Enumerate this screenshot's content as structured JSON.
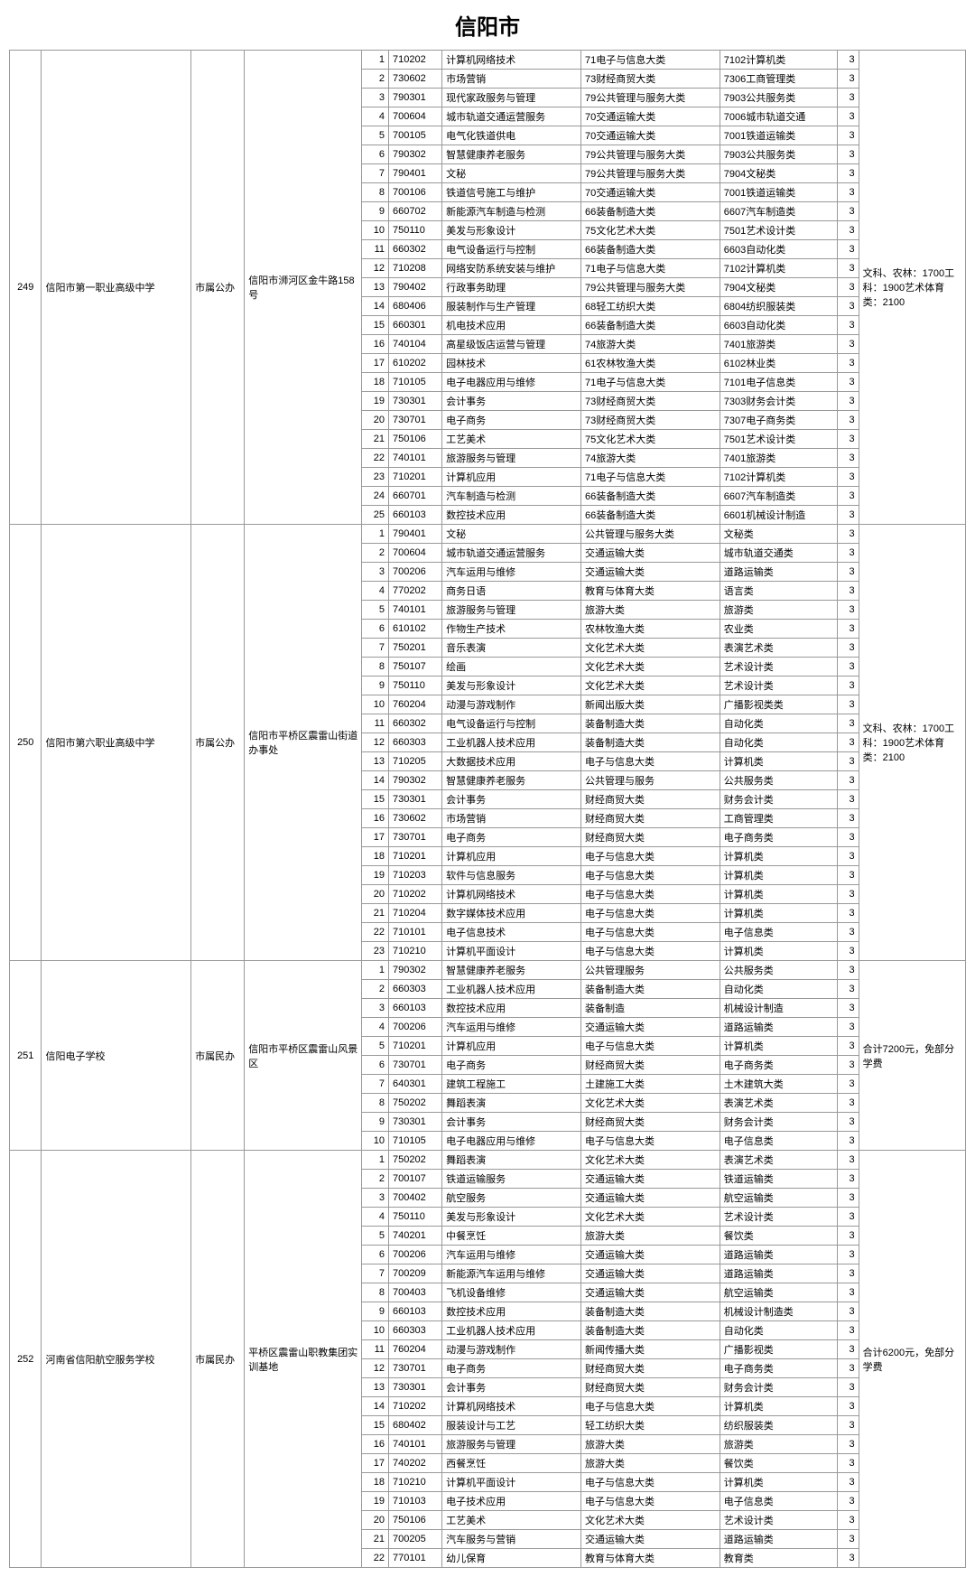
{
  "pageTitle": "信阳市",
  "schools": [
    {
      "id": "249",
      "name": "信阳市第一职业高级中学",
      "type": "市属公办",
      "address": "信阳市浉河区金牛路158号",
      "note": "文科、农林：1700工科：1900艺术体育类：2100",
      "majors": [
        {
          "seq": "1",
          "code": "710202",
          "name": "计算机网络技术",
          "cat1": "71电子与信息大类",
          "cat2": "7102计算机类",
          "years": "3"
        },
        {
          "seq": "2",
          "code": "730602",
          "name": "市场营销",
          "cat1": "73财经商贸大类",
          "cat2": "7306工商管理类",
          "years": "3"
        },
        {
          "seq": "3",
          "code": "790301",
          "name": "现代家政服务与管理",
          "cat1": "79公共管理与服务大类",
          "cat2": "7903公共服务类",
          "years": "3"
        },
        {
          "seq": "4",
          "code": "700604",
          "name": "城市轨道交通运营服务",
          "cat1": "70交通运输大类",
          "cat2": "7006城市轨道交通",
          "years": "3"
        },
        {
          "seq": "5",
          "code": "700105",
          "name": "电气化铁道供电",
          "cat1": "70交通运输大类",
          "cat2": "7001铁道运输类",
          "years": "3"
        },
        {
          "seq": "6",
          "code": "790302",
          "name": "智慧健康养老服务",
          "cat1": "79公共管理与服务大类",
          "cat2": "7903公共服务类",
          "years": "3"
        },
        {
          "seq": "7",
          "code": "790401",
          "name": "文秘",
          "cat1": "79公共管理与服务大类",
          "cat2": "7904文秘类",
          "years": "3"
        },
        {
          "seq": "8",
          "code": "700106",
          "name": "铁道信号施工与维护",
          "cat1": "70交通运输大类",
          "cat2": "7001铁道运输类",
          "years": "3"
        },
        {
          "seq": "9",
          "code": "660702",
          "name": "新能源汽车制造与检测",
          "cat1": "66装备制造大类",
          "cat2": "6607汽车制造类",
          "years": "3"
        },
        {
          "seq": "10",
          "code": "750110",
          "name": "美发与形象设计",
          "cat1": "75文化艺术大类",
          "cat2": "7501艺术设计类",
          "years": "3"
        },
        {
          "seq": "11",
          "code": "660302",
          "name": "电气设备运行与控制",
          "cat1": "66装备制造大类",
          "cat2": "6603自动化类",
          "years": "3"
        },
        {
          "seq": "12",
          "code": "710208",
          "name": "网络安防系统安装与维护",
          "cat1": "71电子与信息大类",
          "cat2": "7102计算机类",
          "years": "3"
        },
        {
          "seq": "13",
          "code": "790402",
          "name": "行政事务助理",
          "cat1": "79公共管理与服务大类",
          "cat2": "7904文秘类",
          "years": "3"
        },
        {
          "seq": "14",
          "code": "680406",
          "name": "服装制作与生产管理",
          "cat1": "68轻工纺织大类",
          "cat2": "6804纺织服装类",
          "years": "3"
        },
        {
          "seq": "15",
          "code": "660301",
          "name": "机电技术应用",
          "cat1": "66装备制造大类",
          "cat2": "6603自动化类",
          "years": "3"
        },
        {
          "seq": "16",
          "code": "740104",
          "name": "高星级饭店运营与管理",
          "cat1": "74旅游大类",
          "cat2": "7401旅游类",
          "years": "3"
        },
        {
          "seq": "17",
          "code": "610202",
          "name": "园林技术",
          "cat1": "61农林牧渔大类",
          "cat2": "6102林业类",
          "years": "3"
        },
        {
          "seq": "18",
          "code": "710105",
          "name": "电子电器应用与维修",
          "cat1": "71电子与信息大类",
          "cat2": "7101电子信息类",
          "years": "3"
        },
        {
          "seq": "19",
          "code": "730301",
          "name": "会计事务",
          "cat1": "73财经商贸大类",
          "cat2": "7303财务会计类",
          "years": "3"
        },
        {
          "seq": "20",
          "code": "730701",
          "name": "电子商务",
          "cat1": "73财经商贸大类",
          "cat2": "7307电子商务类",
          "years": "3"
        },
        {
          "seq": "21",
          "code": "750106",
          "name": "工艺美术",
          "cat1": "75文化艺术大类",
          "cat2": "7501艺术设计类",
          "years": "3"
        },
        {
          "seq": "22",
          "code": "740101",
          "name": "旅游服务与管理",
          "cat1": "74旅游大类",
          "cat2": "7401旅游类",
          "years": "3"
        },
        {
          "seq": "23",
          "code": "710201",
          "name": "计算机应用",
          "cat1": "71电子与信息大类",
          "cat2": "7102计算机类",
          "years": "3"
        },
        {
          "seq": "24",
          "code": "660701",
          "name": "汽车制造与检测",
          "cat1": "66装备制造大类",
          "cat2": "6607汽车制造类",
          "years": "3"
        },
        {
          "seq": "25",
          "code": "660103",
          "name": "数控技术应用",
          "cat1": "66装备制造大类",
          "cat2": "6601机械设计制造",
          "years": "3"
        }
      ]
    },
    {
      "id": "250",
      "name": "信阳市第六职业高级中学",
      "type": "市属公办",
      "address": "信阳市平桥区震雷山街道办事处",
      "note": "文科、农林：1700工科：1900艺术体育类：2100",
      "majors": [
        {
          "seq": "1",
          "code": "790401",
          "name": "文秘",
          "cat1": "公共管理与服务大类",
          "cat2": "文秘类",
          "years": "3"
        },
        {
          "seq": "2",
          "code": "700604",
          "name": "城市轨道交通运营服务",
          "cat1": "交通运输大类",
          "cat2": "城市轨道交通类",
          "years": "3"
        },
        {
          "seq": "3",
          "code": "700206",
          "name": "汽车运用与维修",
          "cat1": "交通运输大类",
          "cat2": "道路运输类",
          "years": "3"
        },
        {
          "seq": "4",
          "code": "770202",
          "name": "商务日语",
          "cat1": "教育与体育大类",
          "cat2": "语言类",
          "years": "3"
        },
        {
          "seq": "5",
          "code": "740101",
          "name": "旅游服务与管理",
          "cat1": "旅游大类",
          "cat2": "旅游类",
          "years": "3"
        },
        {
          "seq": "6",
          "code": "610102",
          "name": "作物生产技术",
          "cat1": "农林牧渔大类",
          "cat2": "农业类",
          "years": "3"
        },
        {
          "seq": "7",
          "code": "750201",
          "name": "音乐表演",
          "cat1": "文化艺术大类",
          "cat2": "表演艺术类",
          "years": "3"
        },
        {
          "seq": "8",
          "code": "750107",
          "name": "绘画",
          "cat1": "文化艺术大类",
          "cat2": "艺术设计类",
          "years": "3"
        },
        {
          "seq": "9",
          "code": "750110",
          "name": "美发与形象设计",
          "cat1": "文化艺术大类",
          "cat2": "艺术设计类",
          "years": "3"
        },
        {
          "seq": "10",
          "code": "760204",
          "name": "动漫与游戏制作",
          "cat1": "新闻出版大类",
          "cat2": "广播影视类类",
          "years": "3"
        },
        {
          "seq": "11",
          "code": "660302",
          "name": "电气设备运行与控制",
          "cat1": "装备制造大类",
          "cat2": "自动化类",
          "years": "3"
        },
        {
          "seq": "12",
          "code": "660303",
          "name": "工业机器人技术应用",
          "cat1": "装备制造大类",
          "cat2": "自动化类",
          "years": "3"
        },
        {
          "seq": "13",
          "code": "710205",
          "name": "大数据技术应用",
          "cat1": "电子与信息大类",
          "cat2": "计算机类",
          "years": "3"
        },
        {
          "seq": "14",
          "code": "790302",
          "name": "智慧健康养老服务",
          "cat1": "公共管理与服务",
          "cat2": "公共服务类",
          "years": "3"
        },
        {
          "seq": "15",
          "code": "730301",
          "name": "会计事务",
          "cat1": "财经商贸大类",
          "cat2": "财务会计类",
          "years": "3"
        },
        {
          "seq": "16",
          "code": "730602",
          "name": "市场营销",
          "cat1": "财经商贸大类",
          "cat2": "工商管理类",
          "years": "3"
        },
        {
          "seq": "17",
          "code": "730701",
          "name": "电子商务",
          "cat1": "财经商贸大类",
          "cat2": "电子商务类",
          "years": "3"
        },
        {
          "seq": "18",
          "code": "710201",
          "name": "计算机应用",
          "cat1": "电子与信息大类",
          "cat2": "计算机类",
          "years": "3"
        },
        {
          "seq": "19",
          "code": "710203",
          "name": "软件与信息服务",
          "cat1": "电子与信息大类",
          "cat2": "计算机类",
          "years": "3"
        },
        {
          "seq": "20",
          "code": "710202",
          "name": "计算机网络技术",
          "cat1": "电子与信息大类",
          "cat2": "计算机类",
          "years": "3"
        },
        {
          "seq": "21",
          "code": "710204",
          "name": "数字媒体技术应用",
          "cat1": "电子与信息大类",
          "cat2": "计算机类",
          "years": "3"
        },
        {
          "seq": "22",
          "code": "710101",
          "name": "电子信息技术",
          "cat1": "电子与信息大类",
          "cat2": "电子信息类",
          "years": "3"
        },
        {
          "seq": "23",
          "code": "710210",
          "name": "计算机平面设计",
          "cat1": "电子与信息大类",
          "cat2": "计算机类",
          "years": "3"
        }
      ]
    },
    {
      "id": "251",
      "name": "信阳电子学校",
      "type": "市属民办",
      "address": "信阳市平桥区震雷山风景区",
      "note": "合计7200元，免部分学费",
      "majors": [
        {
          "seq": "1",
          "code": "790302",
          "name": "智慧健康养老服务",
          "cat1": "公共管理服务",
          "cat2": "公共服务类",
          "years": "3"
        },
        {
          "seq": "2",
          "code": "660303",
          "name": "工业机器人技术应用",
          "cat1": "装备制造大类",
          "cat2": "自动化类",
          "years": "3"
        },
        {
          "seq": "3",
          "code": "660103",
          "name": "数控技术应用",
          "cat1": "装备制造",
          "cat2": "机械设计制造",
          "years": "3"
        },
        {
          "seq": "4",
          "code": "700206",
          "name": "汽车运用与维修",
          "cat1": "交通运输大类",
          "cat2": "道路运输类",
          "years": "3"
        },
        {
          "seq": "5",
          "code": "710201",
          "name": "计算机应用",
          "cat1": "电子与信息大类",
          "cat2": "计算机类",
          "years": "3"
        },
        {
          "seq": "6",
          "code": "730701",
          "name": "电子商务",
          "cat1": "财经商贸大类",
          "cat2": "电子商务类",
          "years": "3"
        },
        {
          "seq": "7",
          "code": "640301",
          "name": "建筑工程施工",
          "cat1": "土建施工大类",
          "cat2": "土木建筑大类",
          "years": "3"
        },
        {
          "seq": "8",
          "code": "750202",
          "name": "舞蹈表演",
          "cat1": "文化艺术大类",
          "cat2": "表演艺术类",
          "years": "3"
        },
        {
          "seq": "9",
          "code": "730301",
          "name": "会计事务",
          "cat1": "财经商贸大类",
          "cat2": "财务会计类",
          "years": "3"
        },
        {
          "seq": "10",
          "code": "710105",
          "name": "电子电器应用与维修",
          "cat1": "电子与信息大类",
          "cat2": "电子信息类",
          "years": "3"
        }
      ]
    },
    {
      "id": "252",
      "name": "河南省信阳航空服务学校",
      "type": "市属民办",
      "address": "平桥区震雷山职教集团实训基地",
      "note": "合计6200元，免部分学费",
      "majors": [
        {
          "seq": "1",
          "code": "750202",
          "name": "舞蹈表演",
          "cat1": "文化艺术大类",
          "cat2": "表演艺术类",
          "years": "3"
        },
        {
          "seq": "2",
          "code": "700107",
          "name": "铁道运输服务",
          "cat1": "交通运输大类",
          "cat2": "铁道运输类",
          "years": "3"
        },
        {
          "seq": "3",
          "code": "700402",
          "name": "航空服务",
          "cat1": "交通运输大类",
          "cat2": "航空运输类",
          "years": "3"
        },
        {
          "seq": "4",
          "code": "750110",
          "name": "美发与形象设计",
          "cat1": "文化艺术大类",
          "cat2": "艺术设计类",
          "years": "3"
        },
        {
          "seq": "5",
          "code": "740201",
          "name": "中餐烹饪",
          "cat1": "旅游大类",
          "cat2": "餐饮类",
          "years": "3"
        },
        {
          "seq": "6",
          "code": "700206",
          "name": "汽车运用与维修",
          "cat1": "交通运输大类",
          "cat2": "道路运输类",
          "years": "3"
        },
        {
          "seq": "7",
          "code": "700209",
          "name": "新能源汽车运用与维修",
          "cat1": "交通运输大类",
          "cat2": "道路运输类",
          "years": "3"
        },
        {
          "seq": "8",
          "code": "700403",
          "name": "飞机设备维修",
          "cat1": "交通运输大类",
          "cat2": "航空运输类",
          "years": "3"
        },
        {
          "seq": "9",
          "code": "660103",
          "name": "数控技术应用",
          "cat1": "装备制造大类",
          "cat2": "机械设计制造类",
          "years": "3"
        },
        {
          "seq": "10",
          "code": "660303",
          "name": "工业机器人技术应用",
          "cat1": "装备制造大类",
          "cat2": "自动化类",
          "years": "3"
        },
        {
          "seq": "11",
          "code": "760204",
          "name": "动漫与游戏制作",
          "cat1": "新闻传播大类",
          "cat2": "广播影视类",
          "years": "3"
        },
        {
          "seq": "12",
          "code": "730701",
          "name": "电子商务",
          "cat1": "财经商贸大类",
          "cat2": "电子商务类",
          "years": "3"
        },
        {
          "seq": "13",
          "code": "730301",
          "name": "会计事务",
          "cat1": "财经商贸大类",
          "cat2": "财务会计类",
          "years": "3"
        },
        {
          "seq": "14",
          "code": "710202",
          "name": "计算机网络技术",
          "cat1": "电子与信息大类",
          "cat2": "计算机类",
          "years": "3"
        },
        {
          "seq": "15",
          "code": "680402",
          "name": "服装设计与工艺",
          "cat1": "轻工纺织大类",
          "cat2": "纺织服装类",
          "years": "3"
        },
        {
          "seq": "16",
          "code": "740101",
          "name": "旅游服务与管理",
          "cat1": "旅游大类",
          "cat2": "旅游类",
          "years": "3"
        },
        {
          "seq": "17",
          "code": "740202",
          "name": "西餐烹饪",
          "cat1": "旅游大类",
          "cat2": "餐饮类",
          "years": "3"
        },
        {
          "seq": "18",
          "code": "710210",
          "name": "计算机平面设计",
          "cat1": "电子与信息大类",
          "cat2": "计算机类",
          "years": "3"
        },
        {
          "seq": "19",
          "code": "710103",
          "name": "电子技术应用",
          "cat1": "电子与信息大类",
          "cat2": "电子信息类",
          "years": "3"
        },
        {
          "seq": "20",
          "code": "750106",
          "name": "工艺美术",
          "cat1": "文化艺术大类",
          "cat2": "艺术设计类",
          "years": "3"
        },
        {
          "seq": "21",
          "code": "700205",
          "name": "汽车服务与营销",
          "cat1": "交通运输大类",
          "cat2": "道路运输类",
          "years": "3"
        },
        {
          "seq": "22",
          "code": "770101",
          "name": "幼儿保育",
          "cat1": "教育与体育大类",
          "cat2": "教育类",
          "years": "3"
        }
      ]
    }
  ]
}
